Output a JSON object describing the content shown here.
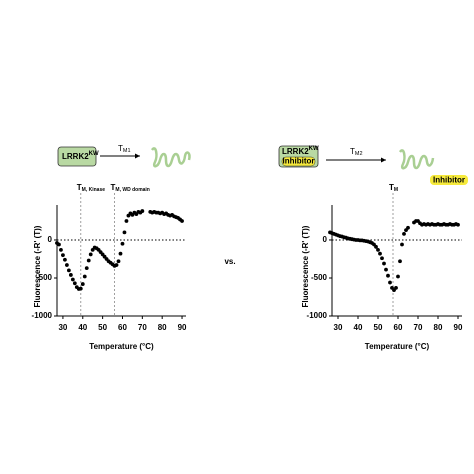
{
  "chart_data": [
    {
      "type": "scatter",
      "x": [
        27,
        28,
        29,
        30,
        31,
        32,
        33,
        34,
        35,
        36,
        37,
        38,
        39,
        40,
        41,
        42,
        43,
        44,
        45,
        46,
        47,
        48,
        49,
        50,
        51,
        52,
        53,
        54,
        55,
        56,
        57,
        58,
        59,
        60,
        61,
        62,
        63,
        64,
        65,
        66,
        67,
        68,
        69,
        70,
        74,
        75,
        76,
        77,
        78,
        79,
        80,
        81,
        82,
        83,
        84,
        85,
        86,
        87,
        88,
        89,
        90
      ],
      "series": [
        {
          "color": "#000000",
          "values": [
            -40,
            -60,
            -130,
            -200,
            -260,
            -330,
            -400,
            -460,
            -520,
            -570,
            -620,
            -645,
            -640,
            -580,
            -480,
            -370,
            -270,
            -190,
            -130,
            -100,
            -110,
            -130,
            -160,
            -190,
            -220,
            -250,
            -280,
            -300,
            -320,
            -340,
            -330,
            -280,
            -180,
            -50,
            100,
            250,
            320,
            350,
            330,
            360,
            340,
            370,
            360,
            380,
            370,
            360,
            370,
            360,
            360,
            350,
            360,
            340,
            350,
            330,
            320,
            330,
            310,
            300,
            290,
            270,
            250
          ]
        }
      ],
      "xlim": [
        25,
        92
      ],
      "ylim": [
        -1000,
        460
      ],
      "xticks": [
        30,
        40,
        50,
        60,
        70,
        80,
        90
      ],
      "yticks": [
        -1000,
        -500,
        0
      ],
      "xlabel": "Temperature (°C)",
      "ylabel": "Fluorescence (-R' (T))",
      "annotations": [
        {
          "text": "T",
          "sub": "M, Kinase",
          "x": 39
        },
        {
          "text": "T",
          "sub": "M, WD domain",
          "x": 56
        }
      ]
    },
    {
      "type": "scatter",
      "x": [
        26,
        27,
        28,
        29,
        30,
        31,
        32,
        33,
        34,
        35,
        36,
        37,
        38,
        39,
        40,
        41,
        42,
        43,
        44,
        45,
        46,
        47,
        48,
        49,
        50,
        51,
        52,
        53,
        54,
        55,
        56,
        57,
        58,
        59,
        60,
        61,
        62,
        63,
        64,
        65,
        68,
        69,
        70,
        71,
        72,
        73,
        74,
        75,
        76,
        77,
        78,
        79,
        80,
        81,
        82,
        83,
        84,
        85,
        86,
        87,
        88,
        89,
        90
      ],
      "series": [
        {
          "color": "#000000",
          "values": [
            100,
            90,
            80,
            70,
            60,
            50,
            45,
            35,
            30,
            20,
            15,
            10,
            5,
            0,
            0,
            -5,
            -5,
            -10,
            -15,
            -20,
            -30,
            -40,
            -60,
            -90,
            -130,
            -180,
            -240,
            -310,
            -390,
            -470,
            -560,
            -630,
            -660,
            -630,
            -480,
            -280,
            -60,
            80,
            130,
            160,
            230,
            250,
            250,
            220,
            200,
            210,
            200,
            210,
            200,
            210,
            200,
            200,
            210,
            200,
            200,
            210,
            200,
            200,
            210,
            200,
            200,
            210,
            200
          ]
        }
      ],
      "xlim": [
        25,
        92
      ],
      "ylim": [
        -1000,
        460
      ],
      "xticks": [
        30,
        40,
        50,
        60,
        70,
        80,
        90
      ],
      "yticks": [
        -1000,
        -500,
        0
      ],
      "xlabel": "Temperature (°C)",
      "ylabel": "Fluorescence (-R' (T))",
      "annotations": [
        {
          "text": "T",
          "sub": "M",
          "x": 57.5
        }
      ]
    }
  ],
  "diagrams": [
    {
      "protein": "LRRK2",
      "sup": "KW",
      "arrow": "T",
      "arrow_sub": "M1"
    },
    {
      "protein": "LRRK2",
      "sup": "KW",
      "bound": "Inhibitor",
      "arrow": "T",
      "arrow_sub": "M2",
      "released": "Inhibitor"
    }
  ],
  "separator": "vs."
}
